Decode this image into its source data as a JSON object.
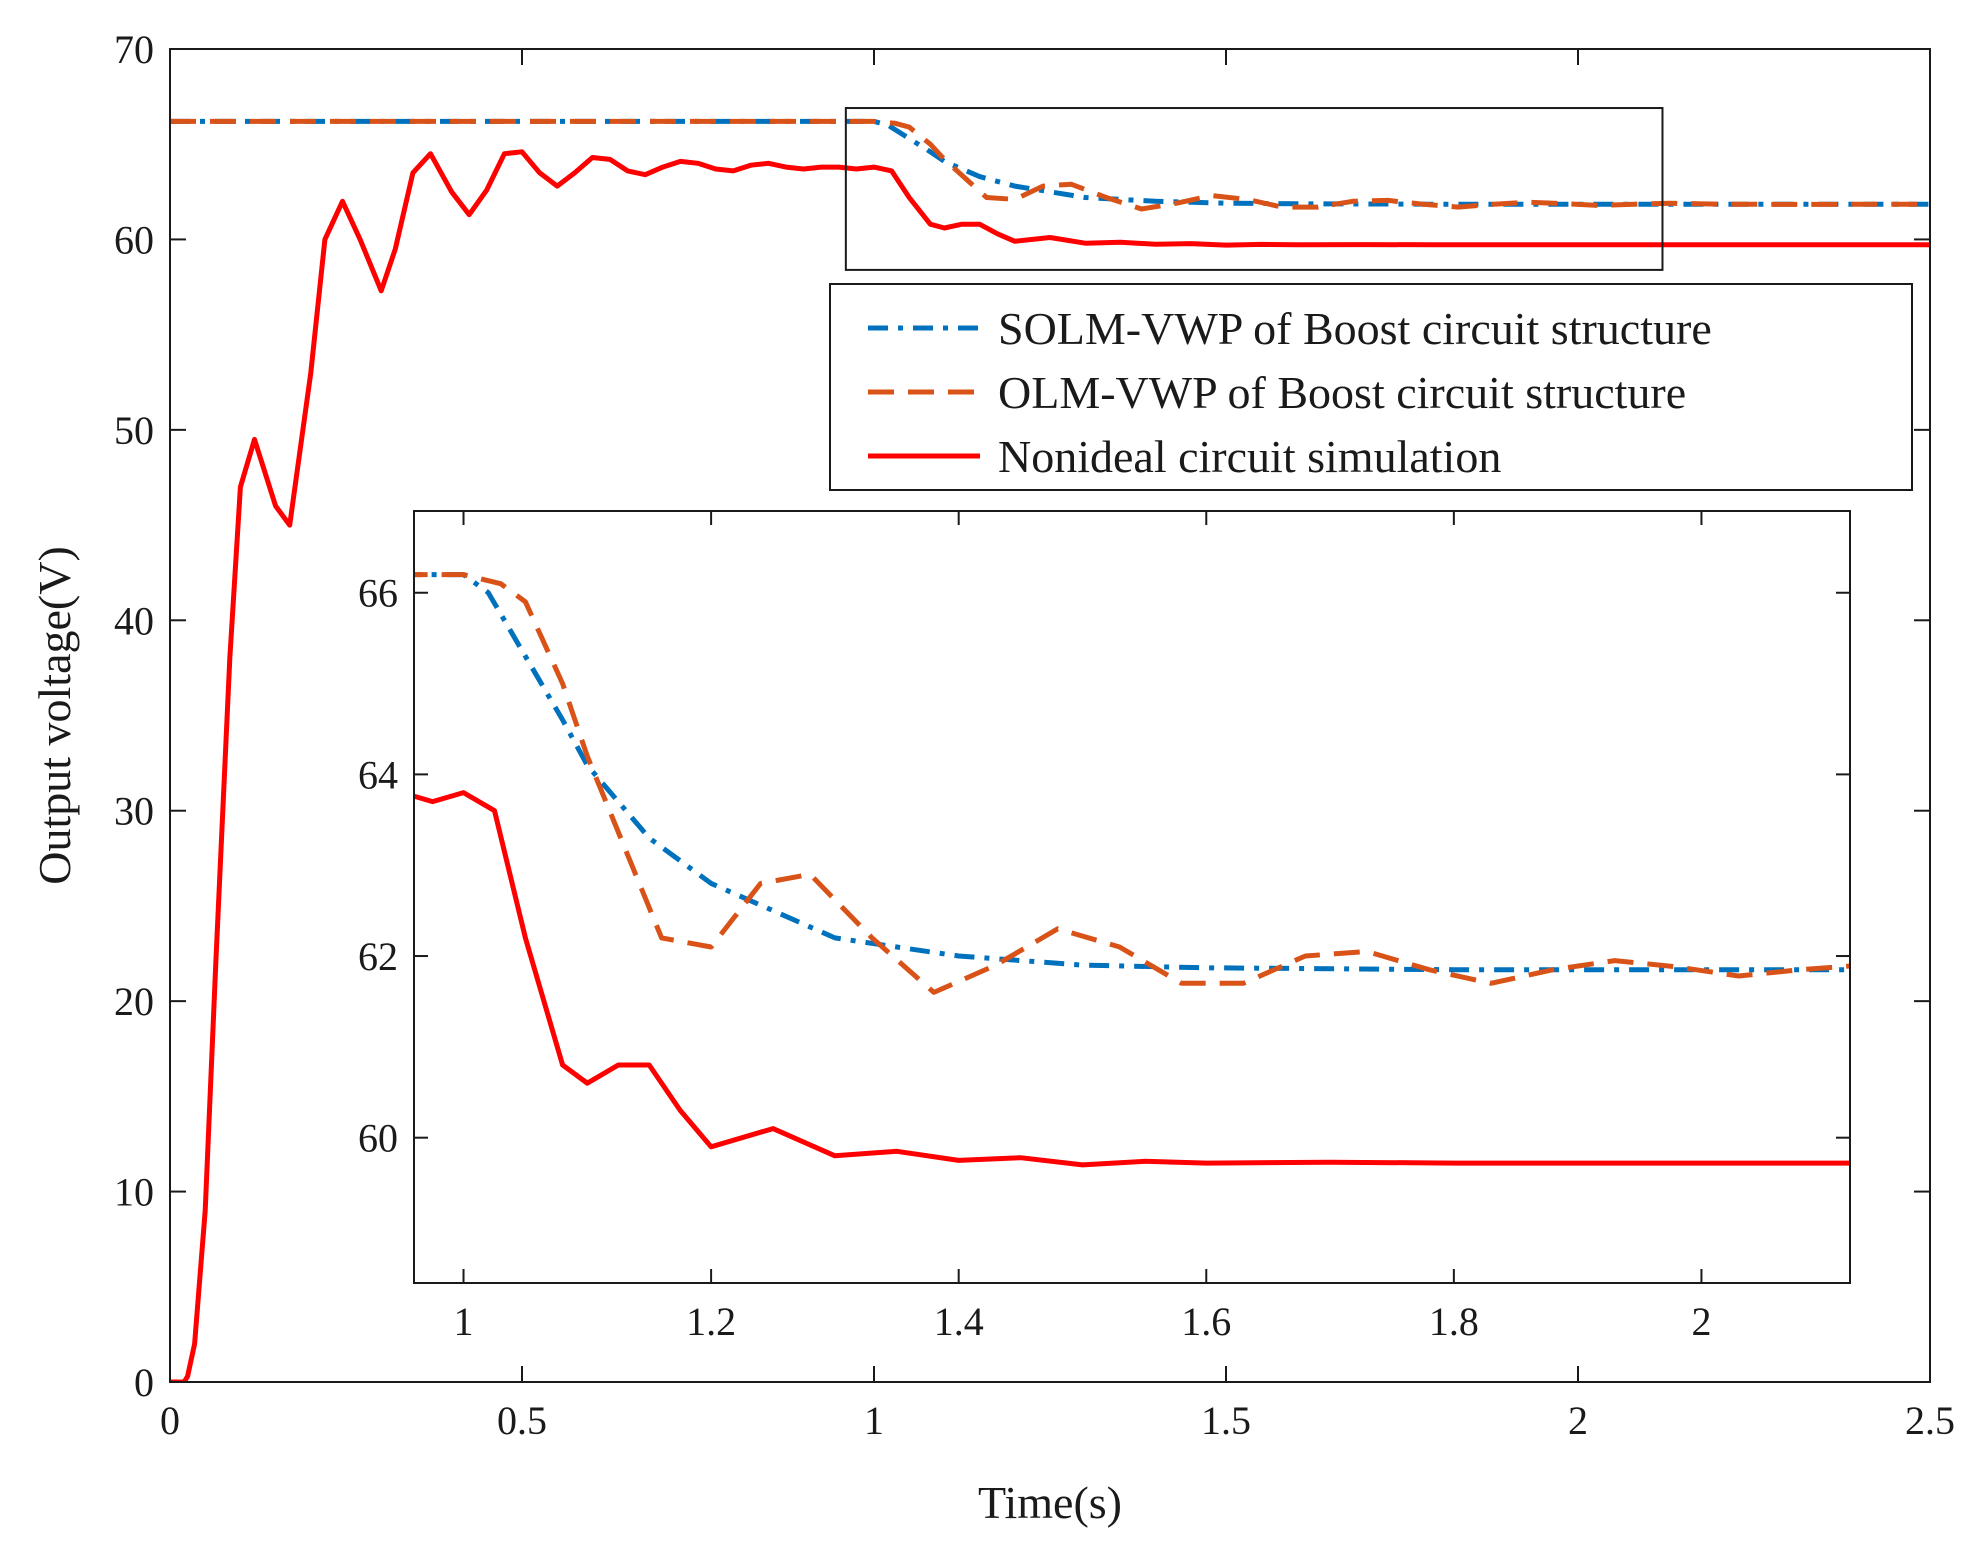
{
  "chart_data": {
    "type": "line",
    "xlabel": "Time(s)",
    "ylabel": "Output voltage(V)",
    "xlim": [
      0,
      2.5
    ],
    "ylim": [
      0,
      70
    ],
    "xticks": [
      0,
      0.5,
      1,
      1.5,
      2,
      2.5
    ],
    "xtick_labels": [
      "0",
      "0.5",
      "1",
      "1.5",
      "2",
      "2.5"
    ],
    "yticks": [
      0,
      10,
      20,
      30,
      40,
      50,
      60,
      70
    ],
    "ytick_labels": [
      "0",
      "10",
      "20",
      "30",
      "40",
      "50",
      "60",
      "70"
    ],
    "colors": {
      "solm": "#0072BD",
      "olm": "#D95319",
      "nonideal": "#FF0000",
      "axis": "#1a1a1a"
    },
    "series": [
      {
        "key": "solm",
        "name": "SOLM-VWP of Boost circuit structure",
        "style": "dashdot",
        "x": [
          0,
          0.5,
          0.95,
          1.0,
          1.02,
          1.05,
          1.08,
          1.1,
          1.15,
          1.2,
          1.25,
          1.3,
          1.35,
          1.4,
          1.5,
          1.6,
          1.8,
          2.0,
          2.5
        ],
        "y": [
          66.2,
          66.2,
          66.2,
          66.2,
          66.0,
          65.3,
          64.6,
          64.1,
          63.3,
          62.8,
          62.5,
          62.2,
          62.1,
          62.0,
          61.9,
          61.87,
          61.85,
          61.85,
          61.85
        ]
      },
      {
        "key": "olm",
        "name": "OLM-VWP of Boost circuit structure",
        "style": "dashed",
        "x": [
          0,
          0.95,
          1.0,
          1.03,
          1.05,
          1.08,
          1.1,
          1.13,
          1.16,
          1.2,
          1.24,
          1.28,
          1.33,
          1.38,
          1.43,
          1.48,
          1.53,
          1.58,
          1.63,
          1.68,
          1.73,
          1.78,
          1.83,
          1.88,
          1.93,
          1.98,
          2.03,
          2.08,
          2.13,
          2.2,
          2.3,
          2.5
        ],
        "y": [
          66.2,
          66.2,
          66.2,
          66.1,
          65.9,
          65.0,
          64.2,
          63.2,
          62.2,
          62.1,
          62.8,
          62.9,
          62.2,
          61.6,
          61.9,
          62.3,
          62.1,
          61.7,
          61.7,
          62.0,
          62.05,
          61.85,
          61.7,
          61.85,
          61.95,
          61.88,
          61.78,
          61.85,
          61.9,
          61.85,
          61.84,
          61.85
        ]
      },
      {
        "key": "nonideal",
        "name": "Nonideal circuit simulation",
        "style": "solid",
        "x": [
          0,
          0.02,
          0.025,
          0.035,
          0.05,
          0.065,
          0.085,
          0.1,
          0.12,
          0.15,
          0.17,
          0.2,
          0.22,
          0.245,
          0.27,
          0.3,
          0.32,
          0.345,
          0.37,
          0.4,
          0.425,
          0.45,
          0.475,
          0.5,
          0.525,
          0.55,
          0.575,
          0.6,
          0.625,
          0.65,
          0.675,
          0.7,
          0.725,
          0.75,
          0.775,
          0.8,
          0.825,
          0.85,
          0.875,
          0.9,
          0.925,
          0.95,
          0.975,
          1.0,
          1.025,
          1.05,
          1.08,
          1.1,
          1.125,
          1.15,
          1.175,
          1.2,
          1.25,
          1.3,
          1.35,
          1.4,
          1.45,
          1.5,
          1.55,
          1.6,
          1.7,
          1.8,
          2.0,
          2.2,
          2.5
        ],
        "y": [
          0,
          0,
          0.3,
          2,
          9,
          22,
          38,
          47,
          49.5,
          46,
          45,
          53,
          60,
          62,
          60,
          57.3,
          59.5,
          63.5,
          64.5,
          62.5,
          61.3,
          62.6,
          64.5,
          64.6,
          63.5,
          62.8,
          63.5,
          64.3,
          64.2,
          63.6,
          63.4,
          63.8,
          64.1,
          64.0,
          63.7,
          63.6,
          63.9,
          64.0,
          63.8,
          63.7,
          63.8,
          63.8,
          63.7,
          63.8,
          63.6,
          62.2,
          60.8,
          60.6,
          60.8,
          60.8,
          60.3,
          59.9,
          60.1,
          59.8,
          59.85,
          59.75,
          59.78,
          59.7,
          59.74,
          59.72,
          59.73,
          59.72,
          59.72,
          59.72,
          59.72
        ]
      }
    ],
    "zoom_box": {
      "xlim": [
        0.96,
        2.12
      ],
      "ylim": [
        58.4,
        66.9
      ]
    },
    "inset": {
      "xlim": [
        0.96,
        2.12
      ],
      "ylim": [
        58.4,
        66.9
      ],
      "xticks": [
        1,
        1.2,
        1.4,
        1.6,
        1.8,
        2
      ],
      "xtick_labels": [
        "1",
        "1.2",
        "1.4",
        "1.6",
        "1.8",
        "2"
      ],
      "yticks": [
        60,
        62,
        64,
        66
      ],
      "ytick_labels": [
        "60",
        "62",
        "64",
        "66"
      ]
    },
    "legend": {
      "position": "upper-right",
      "entries": [
        "SOLM-VWP of Boost circuit structure",
        "OLM-VWP of Boost circuit structure",
        "Nonideal circuit simulation"
      ]
    }
  }
}
